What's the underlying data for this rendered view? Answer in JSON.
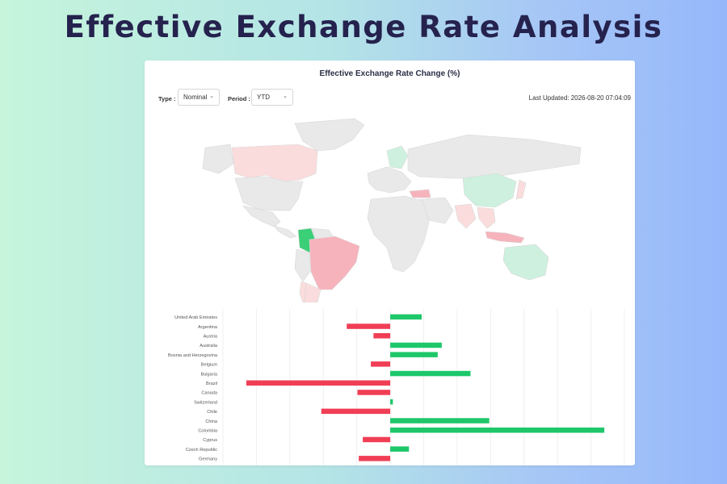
{
  "page": {
    "title": "Effective Exchange Rate Analysis"
  },
  "card": {
    "title": "Effective Exchange Rate Change (%)",
    "controls": {
      "type_label": "Type :",
      "type_value": "Nominal",
      "period_label": "Period :",
      "period_value": "YTD"
    },
    "last_updated": "Last Updated: 2026-08-20 07:04:09"
  },
  "colors": {
    "positive": "#1ec76a",
    "negative": "#f03e55",
    "map_base": "#e9e9e9",
    "map_light_neg": "#fbdcdc",
    "map_light_pos": "#cdf1de",
    "map_strong_pos": "#3bcf78",
    "map_mid_neg": "#f7b3bc"
  },
  "map": {
    "regions": [
      {
        "name": "Greenland",
        "fill": "map_base"
      },
      {
        "name": "Canada",
        "fill": "map_light_neg"
      },
      {
        "name": "Alaska",
        "fill": "map_base"
      },
      {
        "name": "United States",
        "fill": "map_base"
      },
      {
        "name": "Mexico",
        "fill": "map_base"
      },
      {
        "name": "Central America",
        "fill": "map_base"
      },
      {
        "name": "Colombia",
        "fill": "map_strong_pos"
      },
      {
        "name": "Venezuela",
        "fill": "map_base"
      },
      {
        "name": "Brazil",
        "fill": "map_mid_neg"
      },
      {
        "name": "Peru",
        "fill": "map_base"
      },
      {
        "name": "Chile",
        "fill": "map_light_neg"
      },
      {
        "name": "Argentina",
        "fill": "map_light_neg"
      },
      {
        "name": "Europe",
        "fill": "map_base"
      },
      {
        "name": "Scandinavia",
        "fill": "map_light_pos"
      },
      {
        "name": "Russia",
        "fill": "map_base"
      },
      {
        "name": "Turkey",
        "fill": "map_mid_neg"
      },
      {
        "name": "Africa",
        "fill": "map_base"
      },
      {
        "name": "Middle East",
        "fill": "map_base"
      },
      {
        "name": "India",
        "fill": "map_light_neg"
      },
      {
        "name": "China",
        "fill": "map_light_pos"
      },
      {
        "name": "Southeast Asia",
        "fill": "map_light_neg"
      },
      {
        "name": "Indonesia",
        "fill": "map_mid_neg"
      },
      {
        "name": "Japan",
        "fill": "map_light_neg"
      },
      {
        "name": "Australia",
        "fill": "map_light_pos"
      }
    ]
  },
  "chart_data": {
    "type": "bar",
    "orientation": "horizontal",
    "title": "",
    "categories": [
      "United Arab Emirates",
      "Argentina",
      "Austria",
      "Australia",
      "Bosnia and Herzegovina",
      "Belgium",
      "Bulgaria",
      "Brazil",
      "Canada",
      "Switzerland",
      "Chile",
      "China",
      "Colombia",
      "Cyprus",
      "Czech Republic",
      "Germany"
    ],
    "values": [
      4.7,
      -6.5,
      -2.5,
      7.7,
      7.1,
      -2.9,
      12.0,
      -21.5,
      -4.9,
      0.4,
      -10.3,
      14.8,
      32.0,
      -4.1,
      2.8,
      -4.7
    ],
    "xlim": [
      -25,
      35
    ],
    "grid": true,
    "legend": "none"
  }
}
